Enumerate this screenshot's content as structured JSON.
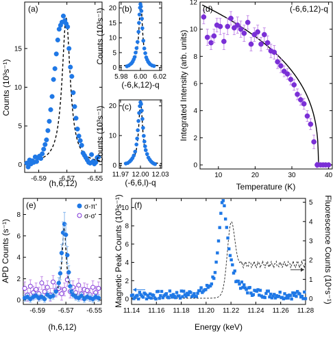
{
  "colors": {
    "blue": "#1f78e6",
    "purple": "#7a2fd6",
    "purple_light": "#c38be8",
    "blue_light": "#86b7ee",
    "fit": "#000000",
    "fluorescence": "#222222",
    "arrow_blue": "#1f78e6"
  },
  "chart_data": [
    {
      "id": "a",
      "panel_label": "(a)",
      "type": "scatter",
      "xlabel": "(h,6,12)",
      "ylabel": "Counts (10³s⁻¹)",
      "xlim": [
        -6.6,
        -6.545
      ],
      "ylim": [
        -1,
        21
      ],
      "xticks": [
        -6.59,
        -6.57,
        -6.55
      ],
      "xticklabels": [
        "-6.59",
        "-6.57",
        "-6.55"
      ],
      "yticks": [
        0,
        5,
        10,
        15
      ],
      "yticklabels": [
        "0",
        "5",
        "10",
        "15"
      ],
      "fit": {
        "type": "lorentzian",
        "center": -6.5705,
        "amplitude": 18.8,
        "hwhm": 0.0035,
        "background": 0.1,
        "style": "dashed"
      },
      "series": [
        {
          "x": [
            -6.5985,
            -6.5975,
            -6.5965,
            -6.5955,
            -6.5945,
            -6.5935,
            -6.5925,
            -6.5915,
            -6.5905,
            -6.5895,
            -6.5885,
            -6.5875,
            -6.5865,
            -6.5855,
            -6.5845,
            -6.5835,
            -6.5825,
            -6.5815,
            -6.5805,
            -6.5795,
            -6.5785,
            -6.5775,
            -6.5765,
            -6.5755,
            -6.5745,
            -6.5735,
            -6.5725,
            -6.5715,
            -6.5705,
            -6.5695,
            -6.5685,
            -6.5675,
            -6.5665,
            -6.5655,
            -6.5645,
            -6.5635,
            -6.5625,
            -6.5615,
            -6.5605,
            -6.5595,
            -6.5585,
            -6.5575,
            -6.5565,
            -6.5555,
            -6.5545,
            -6.5535,
            -6.5525,
            -6.5515,
            -6.5505,
            -6.5495,
            -6.5485,
            -6.5475
          ],
          "y": [
            0.2,
            -0.3,
            0.6,
            0.1,
            0.5,
            0.3,
            1.0,
            0.4,
            0.9,
            1.1,
            0.8,
            1.4,
            2.0,
            2.6,
            3.2,
            4.4,
            5.6,
            7.1,
            8.8,
            11.0,
            12.4,
            14.3,
            16.1,
            17.5,
            18.0,
            18.4,
            19.2,
            18.6,
            18.2,
            17.8,
            15.0,
            12.6,
            11.4,
            9.3,
            7.5,
            6.0,
            4.6,
            3.7,
            3.1,
            2.5,
            1.5,
            1.2,
            0.9,
            0.6,
            0.3,
            0.2,
            1.3,
            0.4,
            0.1,
            0.3,
            0.9,
            1.0
          ]
        }
      ]
    },
    {
      "id": "b",
      "panel_label": "(b)",
      "type": "scatter",
      "xlabel": "(-6,k,12)-q",
      "ylabel": "Counts (10³s⁻¹)",
      "xlim": [
        5.978,
        6.022
      ],
      "ylim": [
        -1,
        22
      ],
      "xticks": [
        5.98,
        6.0,
        6.02
      ],
      "xticklabels": [
        "5.98",
        "6.00",
        "6.02"
      ],
      "yticks": [
        0,
        5,
        10,
        15,
        20
      ],
      "yticklabels": [
        "0",
        "5",
        "10",
        "15",
        "20"
      ],
      "fit": {
        "type": "lorentzian",
        "center": 6.0003,
        "amplitude": 21.5,
        "hwhm": 0.0022,
        "background": 0.3,
        "style": "dashed"
      },
      "series": [
        {
          "x": [
            5.986,
            5.988,
            5.99,
            5.991,
            5.992,
            5.993,
            5.994,
            5.995,
            5.996,
            5.997,
            5.998,
            5.9985,
            5.999,
            5.9995,
            6.0,
            6.0005,
            6.001,
            6.0015,
            6.002,
            6.003,
            6.004,
            6.005,
            6.006,
            6.007,
            6.008,
            6.009,
            6.01,
            6.012,
            6.014
          ],
          "y": [
            0.4,
            0.7,
            1.2,
            1.5,
            2.0,
            2.7,
            3.5,
            5.0,
            6.5,
            8.6,
            12.0,
            15.0,
            17.8,
            20.1,
            21.3,
            20.5,
            19.0,
            16.4,
            13.2,
            9.0,
            6.4,
            4.8,
            3.4,
            2.6,
            1.9,
            1.5,
            1.1,
            0.7,
            0.5
          ]
        }
      ]
    },
    {
      "id": "c",
      "panel_label": "(c)",
      "type": "scatter",
      "xlabel": "(-6,6,l)-q",
      "ylabel": "Counts (10³s⁻¹)",
      "xlim": [
        11.968,
        12.032
      ],
      "ylim": [
        -1,
        22
      ],
      "xticks": [
        11.97,
        12.0,
        12.03
      ],
      "xticklabels": [
        "11.97",
        "12.00",
        "12.03"
      ],
      "yticks": [
        0,
        10,
        20
      ],
      "yticklabels": [
        "0",
        "10",
        "20"
      ],
      "fit": {
        "type": "lorentzian",
        "center": 12.0003,
        "amplitude": 21.0,
        "hwhm": 0.0036,
        "background": 0.3,
        "style": "dashed"
      },
      "series": [
        {
          "x": [
            11.978,
            11.981,
            11.984,
            11.986,
            11.988,
            11.99,
            11.992,
            11.994,
            11.995,
            11.996,
            11.997,
            11.998,
            11.999,
            12.0,
            12.001,
            12.002,
            12.003,
            12.004,
            12.005,
            12.006,
            12.007,
            12.008,
            12.01,
            12.012,
            12.014,
            12.016,
            12.018,
            12.02,
            12.022
          ],
          "y": [
            0.6,
            0.8,
            1.3,
            1.8,
            2.4,
            3.3,
            4.6,
            7.0,
            9.0,
            11.8,
            14.9,
            17.6,
            19.9,
            21.2,
            20.6,
            18.4,
            15.6,
            12.6,
            9.9,
            8.0,
            6.4,
            5.1,
            3.8,
            2.6,
            1.9,
            1.3,
            0.9,
            0.6,
            0.4
          ]
        }
      ]
    },
    {
      "id": "d",
      "panel_label": "(d)",
      "panel_annotation": "(-6,6,12)-q",
      "type": "scatter",
      "xlabel": "Temperature (K)",
      "ylabel": "Integrated Intensity (arb. units)",
      "xlim": [
        5,
        41
      ],
      "ylim": [
        -0.3,
        12
      ],
      "xticks": [
        10,
        20,
        30,
        40
      ],
      "xticklabels": [
        "10",
        "20",
        "30",
        "40"
      ],
      "yticks": [
        0,
        2,
        4,
        6,
        8,
        10,
        12
      ],
      "yticklabels": [
        "0",
        "2",
        "4",
        "6",
        "8",
        "10",
        "12"
      ],
      "fit": {
        "type": "power_law",
        "Tc": 37.2,
        "amplitude": 11.8,
        "beta": 0.36,
        "T0": 5.5,
        "style": "solid"
      },
      "series": [
        {
          "x": [
            6.0,
            7.0,
            8.0,
            8.8,
            9.6,
            10.5,
            11.5,
            12.5,
            13.4,
            14.3,
            15.2,
            16.1,
            17.0,
            18.0,
            18.9,
            19.8,
            20.7,
            21.6,
            22.5,
            23.4,
            24.3,
            25.2,
            26.1,
            27.0,
            27.9,
            28.8,
            29.7,
            30.6,
            31.5,
            32.4,
            33.3,
            34.2,
            35.1,
            36.0,
            36.9,
            37.8,
            38.5,
            39.2,
            40.0
          ],
          "y": [
            10.9,
            9.4,
            9.0,
            9.5,
            10.3,
            10.2,
            9.1,
            10.2,
            10.8,
            10.1,
            10.3,
            10.0,
            9.7,
            10.5,
            8.9,
            9.6,
            9.8,
            8.9,
            9.6,
            9.0,
            8.4,
            8.3,
            7.6,
            7.3,
            6.9,
            6.7,
            6.3,
            5.9,
            5.2,
            4.8,
            4.5,
            3.6,
            3.0,
            1.7,
            0.0,
            0.0,
            0.0,
            0.0,
            0.0
          ],
          "err": [
            0.5,
            0.6,
            0.5,
            0.5,
            0.5,
            0.6,
            0.6,
            0.6,
            0.5,
            0.5,
            0.6,
            0.6,
            0.6,
            0.5,
            0.5,
            0.5,
            0.5,
            0.5,
            0.5,
            0.5,
            0.5,
            0.5,
            0.5,
            0.5,
            0.4,
            0.4,
            0.4,
            0.4,
            0.4,
            0.4,
            0.4,
            0.4,
            0.4,
            0.5,
            0.2,
            0.1,
            0.1,
            0.1,
            0.1
          ]
        }
      ]
    },
    {
      "id": "e",
      "panel_label": "(e)",
      "type": "scatter",
      "xlabel": "(h,6,12)",
      "ylabel": "APD Counts (s⁻¹)",
      "xlim": [
        -6.6,
        -6.545
      ],
      "ylim": [
        -0.4,
        9.5
      ],
      "xticks": [
        -6.59,
        -6.57,
        -6.55
      ],
      "xticklabels": [
        "-6.59",
        "-6.57",
        "-6.55"
      ],
      "yticks": [
        0,
        2,
        4,
        6,
        8
      ],
      "yticklabels": [
        "0",
        "2",
        "4",
        "6",
        "8"
      ],
      "legend": [
        "σ-π'",
        "σ-σ'"
      ],
      "legend_position": "top-right",
      "fit": {
        "type": "lorentzian",
        "center": -6.5712,
        "amplitude": 6.6,
        "hwhm": 0.0018,
        "background": 0.2,
        "style": "dashed"
      },
      "series": [
        {
          "name": "σ-π'",
          "marker": "filled",
          "x": [
            -6.599,
            -6.597,
            -6.595,
            -6.593,
            -6.591,
            -6.589,
            -6.587,
            -6.585,
            -6.583,
            -6.581,
            -6.579,
            -6.577,
            -6.575,
            -6.574,
            -6.573,
            -6.572,
            -6.571,
            -6.57,
            -6.569,
            -6.568,
            -6.567,
            -6.566,
            -6.565,
            -6.563,
            -6.561,
            -6.559,
            -6.557,
            -6.555,
            -6.553,
            -6.551,
            -6.549,
            -6.547
          ],
          "y": [
            0.2,
            0.3,
            0.1,
            0.3,
            0.4,
            0.2,
            0.3,
            0.1,
            0.5,
            0.3,
            0.4,
            0.8,
            1.6,
            2.5,
            4.4,
            6.3,
            7.1,
            6.1,
            4.2,
            2.6,
            1.3,
            0.8,
            0.5,
            0.3,
            0.2,
            0.4,
            0.1,
            0.3,
            0.2,
            0.1,
            0.3,
            0.2
          ],
          "err": [
            0.3,
            0.3,
            0.3,
            0.3,
            0.3,
            0.3,
            0.3,
            0.3,
            0.3,
            0.3,
            0.3,
            0.4,
            0.5,
            0.6,
            0.8,
            1.0,
            1.1,
            1.0,
            0.8,
            0.6,
            0.5,
            0.4,
            0.3,
            0.3,
            0.3,
            0.3,
            0.3,
            0.3,
            0.3,
            0.3,
            0.3,
            0.3
          ]
        },
        {
          "name": "σ-σ'",
          "marker": "open",
          "x": [
            -6.599,
            -6.597,
            -6.595,
            -6.593,
            -6.591,
            -6.589,
            -6.587,
            -6.585,
            -6.583,
            -6.581,
            -6.579,
            -6.577,
            -6.575,
            -6.573,
            -6.571,
            -6.569,
            -6.567,
            -6.565,
            -6.563,
            -6.561,
            -6.559,
            -6.557,
            -6.555,
            -6.553,
            -6.551,
            -6.549,
            -6.547
          ],
          "y": [
            1.1,
            0.5,
            1.3,
            0.7,
            1.0,
            0.6,
            1.6,
            0.8,
            1.2,
            0.5,
            1.7,
            0.9,
            1.1,
            0.6,
            1.0,
            1.9,
            0.8,
            1.2,
            0.7,
            1.4,
            0.6,
            1.0,
            0.9,
            0.5,
            1.2,
            0.7,
            1.1
          ],
          "err": [
            0.6,
            0.6,
            0.6,
            0.6,
            0.6,
            0.6,
            0.6,
            0.6,
            0.6,
            0.6,
            0.6,
            0.6,
            0.6,
            0.6,
            0.6,
            0.6,
            0.6,
            0.6,
            0.6,
            0.6,
            0.6,
            0.6,
            0.6,
            0.6,
            0.6,
            0.6,
            0.6
          ]
        }
      ]
    },
    {
      "id": "f",
      "panel_label": "(f)",
      "type": "line",
      "xlabel": "Energy (keV)",
      "ylabel": "Magnetic Peak Counts (10³s⁻¹)",
      "ylabel_right": "Fluorescence Counts (10⁴s⁻¹)",
      "xlim": [
        11.14,
        11.28
      ],
      "ylim": [
        -0.6,
        11
      ],
      "ylim_right": [
        -0.3,
        5.2
      ],
      "xticks": [
        11.14,
        11.16,
        11.18,
        11.2,
        11.22,
        11.24,
        11.26,
        11.28
      ],
      "xticklabels": [
        "11.14",
        "11.16",
        "11.18",
        "11.20",
        "11.22",
        "11.24",
        "11.26",
        "11.28"
      ],
      "yticks": [
        0,
        2,
        4,
        6,
        8,
        10
      ],
      "yticklabels": [
        "0",
        "2",
        "4",
        "6",
        "8",
        "10"
      ],
      "yticks_right": [
        0,
        1,
        2,
        3,
        4,
        5
      ],
      "yticklabels_right": [
        "0",
        "1",
        "2",
        "3",
        "4",
        "5"
      ],
      "series": [
        {
          "name": "magnetic peak",
          "axis": "left",
          "marker": "square",
          "peak_center": 11.2135,
          "peak_amplitude": 10.3,
          "peak_hwhm": 0.0038,
          "background": 0.35
        },
        {
          "name": "fluorescence",
          "axis": "right",
          "style": "dashed",
          "edge_center": 11.217,
          "white_line": 4.3,
          "post_edge": 1.75
        }
      ]
    }
  ]
}
